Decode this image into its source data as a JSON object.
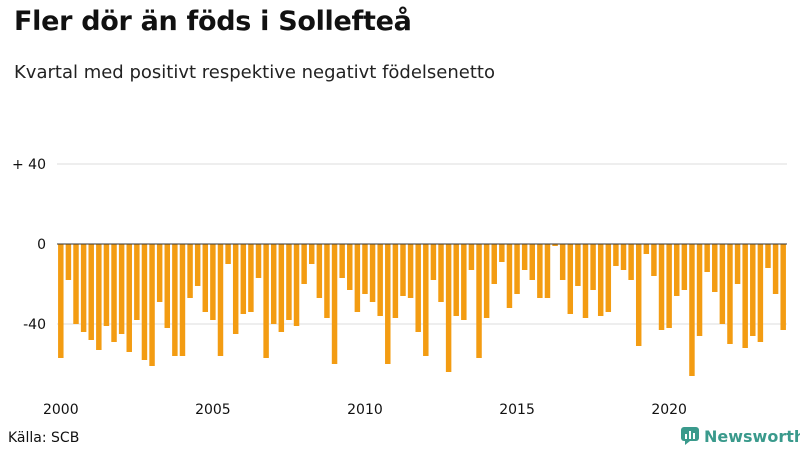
{
  "title": "Fler dör än föds i Sollefteå",
  "subtitle": "Kvartal med positivt respektive negativt födelsenetto",
  "source": "Källa: SCB",
  "brand": "Newsworthy",
  "chart_data": {
    "type": "bar",
    "bar_color": "#f39c12",
    "grid_color": "#dddddd",
    "zero_line_color": "#333333",
    "ylim": [
      -70,
      40
    ],
    "y_ticks": [
      {
        "value": 40,
        "label": "+ 40"
      },
      {
        "value": 0,
        "label": "0"
      },
      {
        "value": -40,
        "label": "-40"
      }
    ],
    "x_ticks": [
      "2000",
      "2005",
      "2010",
      "2015",
      "2020"
    ],
    "start_year": 2000,
    "values": [
      -57,
      -18,
      -40,
      -44,
      -48,
      -53,
      -41,
      -49,
      -45,
      -54,
      -38,
      -58,
      -61,
      -29,
      -42,
      -56,
      -56,
      -27,
      -21,
      -34,
      -38,
      -56,
      -10,
      -45,
      -35,
      -34,
      -17,
      -57,
      -40,
      -44,
      -38,
      -41,
      -20,
      -10,
      -27,
      -37,
      -60,
      -17,
      -23,
      -34,
      -25,
      -29,
      -36,
      -60,
      -37,
      -26,
      -27,
      -44,
      -56,
      -18,
      -29,
      -64,
      -36,
      -38,
      -13,
      -57,
      -37,
      -20,
      -9,
      -32,
      -25,
      -13,
      -18,
      -27,
      -27,
      -1,
      -18,
      -35,
      -21,
      -37,
      -23,
      -36,
      -34,
      -11,
      -13,
      -18,
      -51,
      -5,
      -16,
      -43,
      -42,
      -26,
      -23,
      -66,
      -46,
      -14,
      -24,
      -40,
      -50,
      -20,
      -52,
      -46,
      -49,
      -12,
      -25,
      -43
    ]
  }
}
